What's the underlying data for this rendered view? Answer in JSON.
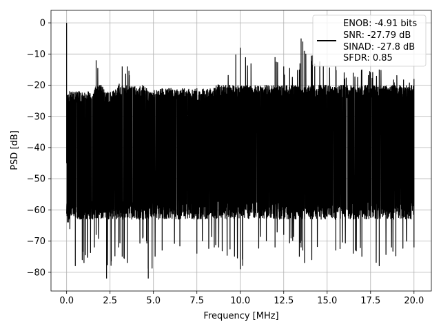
{
  "chart_data": {
    "type": "line",
    "title": "",
    "xlabel": "Frequency [MHz]",
    "ylabel": "PSD [dB]",
    "xlim": [
      -0.9,
      21.0
    ],
    "ylim": [
      -86,
      4
    ],
    "x_ticks": [
      0.0,
      2.5,
      5.0,
      7.5,
      10.0,
      12.5,
      15.0,
      17.5,
      20.0
    ],
    "x_tick_labels": [
      "0.0",
      "2.5",
      "5.0",
      "7.5",
      "10.0",
      "12.5",
      "15.0",
      "17.5",
      "20.0"
    ],
    "y_ticks": [
      0,
      -10,
      -20,
      -30,
      -40,
      -50,
      -60,
      -70,
      -80
    ],
    "y_tick_labels": [
      "0",
      "−10",
      "−20",
      "−30",
      "−40",
      "−50",
      "−60",
      "−70",
      "−80"
    ],
    "grid": true,
    "legend_position": "top-right",
    "legend": [
      "ENOB: -4.91 bits",
      "SNR: -27.79 dB",
      "SINAD: -27.8 dB",
      "SFDR: 0.85"
    ],
    "series": [
      {
        "color": "#000000",
        "x_range": [
          0.0,
          20.0
        ],
        "noise_floor_db": -63,
        "noise_ceiling_db": -22,
        "x": [
          0.0,
          0.05,
          0.1,
          0.5,
          1.0,
          1.6,
          1.7,
          2.3,
          3.0,
          3.2,
          3.5,
          4.6,
          4.7,
          5.5,
          7.5,
          8.5,
          10.0,
          11.5,
          12.0,
          12.5,
          13.4,
          13.5,
          13.6,
          13.7,
          15.5,
          16.5,
          17.0,
          18.0,
          20.0
        ],
        "peak_db": [
          0,
          -45,
          -23,
          -25,
          -25,
          -22,
          -12,
          -24,
          -20,
          -14,
          -14,
          -21,
          -22,
          -21,
          -21,
          -21,
          -8,
          -20,
          -11,
          -14,
          -15,
          -5,
          -6,
          -9,
          -14,
          -16,
          -15,
          -15,
          -18
        ],
        "dip_db": [
          -45,
          -64,
          -64,
          -78,
          -77,
          -72,
          -68,
          -82,
          -72,
          -75,
          -77,
          -70,
          -82,
          -73,
          -74,
          -72,
          -79,
          -70,
          -72,
          -68,
          -75,
          -72,
          -73,
          -77,
          -73,
          -74,
          -75,
          -78,
          -72
        ]
      }
    ]
  }
}
